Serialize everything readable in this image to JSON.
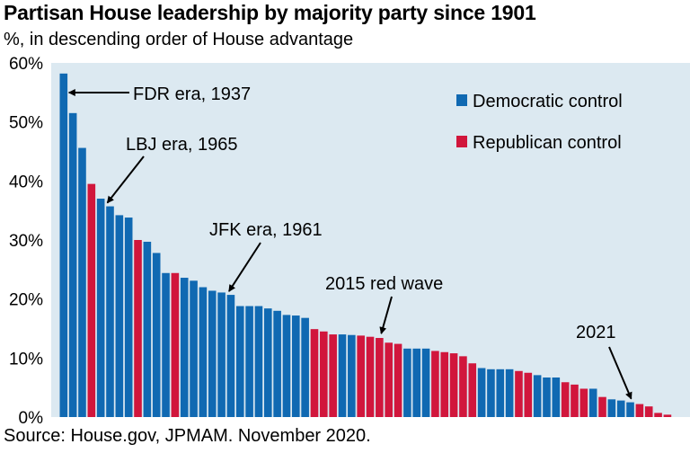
{
  "title": "Partisan House leadership by majority party since 1901",
  "subtitle": "%, in descending order of House advantage",
  "source": "Source: House.gov, JPMAM. November 2020.",
  "colors": {
    "democratic": "#1069b2",
    "republican": "#d1163c",
    "plot_bg": "#dce9f1"
  },
  "chart_data": {
    "type": "bar",
    "title": "Partisan House leadership by majority party since 1901",
    "subtitle": "%, in descending order of House advantage",
    "xlabel": "",
    "ylabel": "",
    "ylim": [
      0,
      60
    ],
    "yticks": [
      0,
      10,
      20,
      30,
      40,
      50,
      60
    ],
    "ytick_labels": [
      "0%",
      "10%",
      "20%",
      "30%",
      "40%",
      "50%",
      "60%"
    ],
    "grid": false,
    "legend": {
      "position": "top-right",
      "entries": [
        {
          "label": "Democratic control",
          "color": "#1069b2"
        },
        {
          "label": "Republican control",
          "color": "#d1163c"
        }
      ]
    },
    "series": [
      {
        "name": "Democratic control",
        "values": [
          58.2,
          51.5,
          45.6,
          null,
          37.0,
          35.7,
          34.2,
          33.8,
          null,
          29.7,
          27.8,
          24.4,
          null,
          23.6,
          23.1,
          22.0,
          21.4,
          21.1,
          20.7,
          18.8,
          18.8,
          18.8,
          18.4,
          18.0,
          17.3,
          17.2,
          16.8,
          null,
          null,
          null,
          14.0,
          13.9,
          null,
          null,
          null,
          null,
          null,
          11.6,
          11.6,
          11.6,
          null,
          null,
          null,
          null,
          null,
          8.3,
          8.1,
          8.1,
          8.1,
          null,
          null,
          7.1,
          6.7,
          6.7,
          null,
          null,
          null,
          4.8,
          null,
          3.0,
          2.8,
          2.5,
          null,
          null,
          null,
          null
        ]
      },
      {
        "name": "Republican control",
        "values": [
          null,
          null,
          null,
          39.5,
          null,
          null,
          null,
          null,
          30.0,
          null,
          null,
          null,
          24.4,
          null,
          null,
          null,
          null,
          null,
          null,
          null,
          null,
          null,
          null,
          null,
          null,
          null,
          null,
          14.9,
          14.5,
          14.0,
          null,
          null,
          13.8,
          13.6,
          13.4,
          12.6,
          12.4,
          null,
          null,
          null,
          11.2,
          11.0,
          10.8,
          10.3,
          9.1,
          null,
          null,
          null,
          null,
          7.8,
          7.5,
          null,
          null,
          null,
          5.9,
          5.5,
          4.8,
          null,
          3.4,
          null,
          null,
          null,
          2.2,
          1.8,
          0.7,
          0.4
        ]
      }
    ],
    "annotations": [
      {
        "text": "FDR era, 1937",
        "bar_index": 0
      },
      {
        "text": "LBJ era, 1965",
        "bar_index": 5
      },
      {
        "text": "JFK era, 1961",
        "bar_index": 18
      },
      {
        "text": "2015 red wave",
        "bar_index": 34
      },
      {
        "text": "2021",
        "bar_index": 61
      }
    ]
  }
}
